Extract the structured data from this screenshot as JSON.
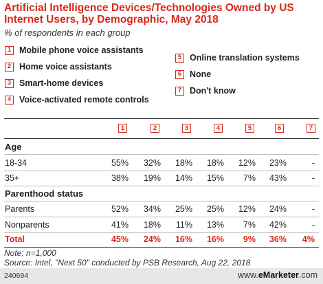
{
  "chart_data": {
    "type": "table",
    "title": "Artificial Intelligence Devices/Technologies Owned by US Internet Users, by Demographic, May 2018",
    "subtitle": "% of respondents in each group",
    "legend": [
      {
        "num": "1",
        "label": "Mobile phone voice assistants"
      },
      {
        "num": "2",
        "label": "Home voice assistants"
      },
      {
        "num": "3",
        "label": "Smart-home devices"
      },
      {
        "num": "4",
        "label": "Voice-activated remote controls"
      },
      {
        "num": "5",
        "label": "Online translation systems"
      },
      {
        "num": "6",
        "label": "None"
      },
      {
        "num": "7",
        "label": "Don't know"
      }
    ],
    "columns": [
      "1",
      "2",
      "3",
      "4",
      "5",
      "6",
      "7"
    ],
    "groups": [
      {
        "name": "Age",
        "rows": [
          {
            "label": "18-34",
            "values": [
              "55%",
              "32%",
              "18%",
              "18%",
              "12%",
              "23%",
              "-"
            ]
          },
          {
            "label": "35+",
            "values": [
              "38%",
              "19%",
              "14%",
              "15%",
              "7%",
              "43%",
              "-"
            ]
          }
        ]
      },
      {
        "name": "Parenthood status",
        "rows": [
          {
            "label": "Parents",
            "values": [
              "52%",
              "34%",
              "25%",
              "25%",
              "12%",
              "24%",
              "-"
            ]
          },
          {
            "label": "Nonparents",
            "values": [
              "41%",
              "18%",
              "11%",
              "13%",
              "7%",
              "42%",
              "-"
            ]
          }
        ]
      }
    ],
    "total": {
      "label": "Total",
      "values": [
        "45%",
        "24%",
        "16%",
        "16%",
        "9%",
        "36%",
        "4%"
      ]
    },
    "note": "Note: n=1,000",
    "source": "Source: Intel, \"Next 50\" conducted by PSB Research, Aug 22, 2018",
    "footer_id": "240694",
    "brand_prefix": "www.",
    "brand_name": "eMarketer",
    "brand_suffix": ".com"
  },
  "colors": {
    "accent": "#d9271a",
    "text": "#222222"
  }
}
